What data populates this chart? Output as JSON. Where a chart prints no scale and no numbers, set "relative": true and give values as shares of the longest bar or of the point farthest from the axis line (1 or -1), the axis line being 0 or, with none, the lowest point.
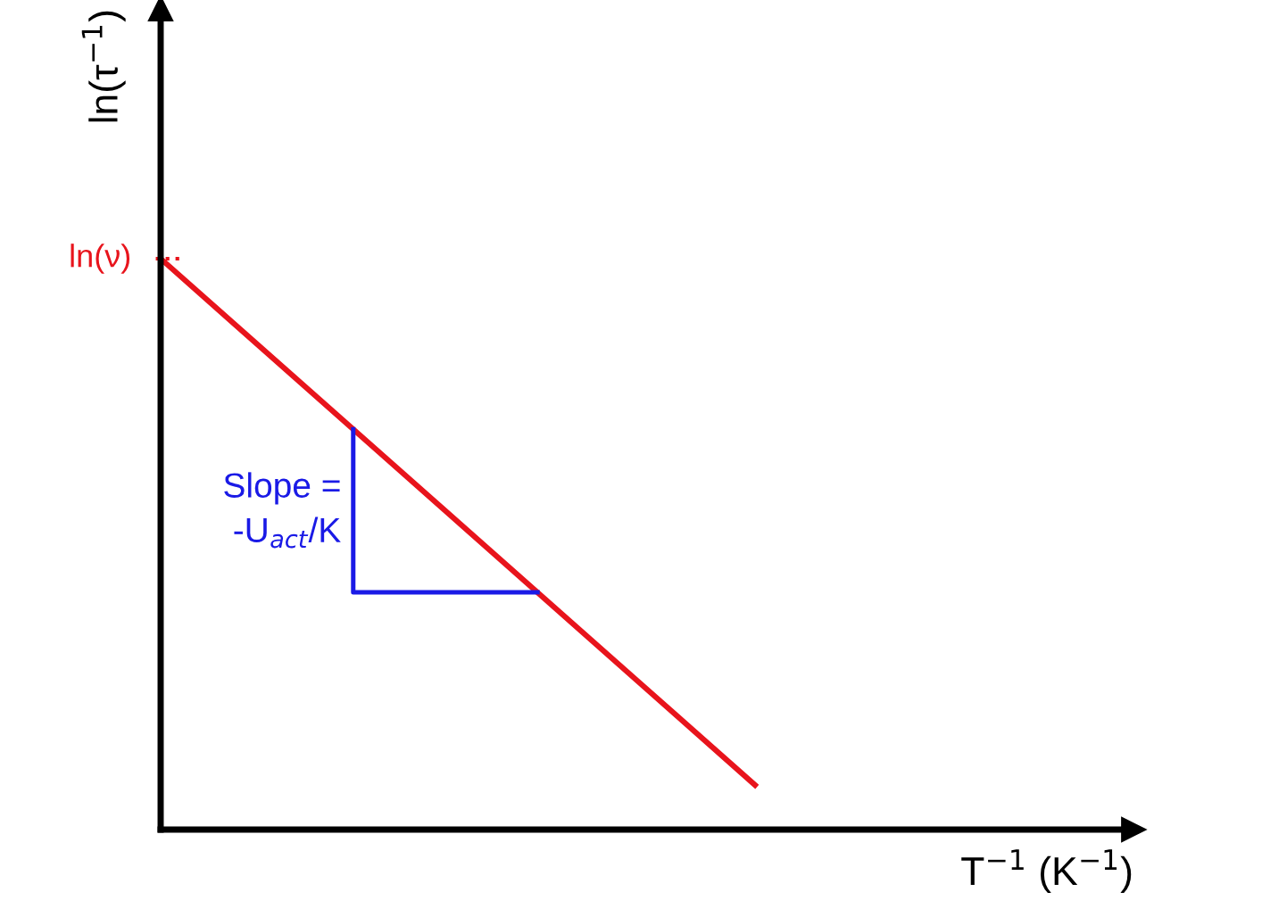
{
  "chart_data": {
    "type": "line",
    "relative": true,
    "xlabel": "T$^{−1}$ (K$^{−1}$)",
    "ylabel": "ln(τ$^{−1}$)",
    "categories": [
      null,
      null
    ],
    "series": [
      {
        "color": "#e8141c",
        "values": [
          1,
          0.078
        ]
      }
    ],
    "ref_lines": [
      {
        "axis": "y",
        "value": 1,
        "label": "ln(ν)",
        "color": "#e8141c",
        "line_style": "dotted"
      }
    ],
    "annotations": [
      "Slope =\n-U$_{act}$/K"
    ],
    "legend": false
  }
}
